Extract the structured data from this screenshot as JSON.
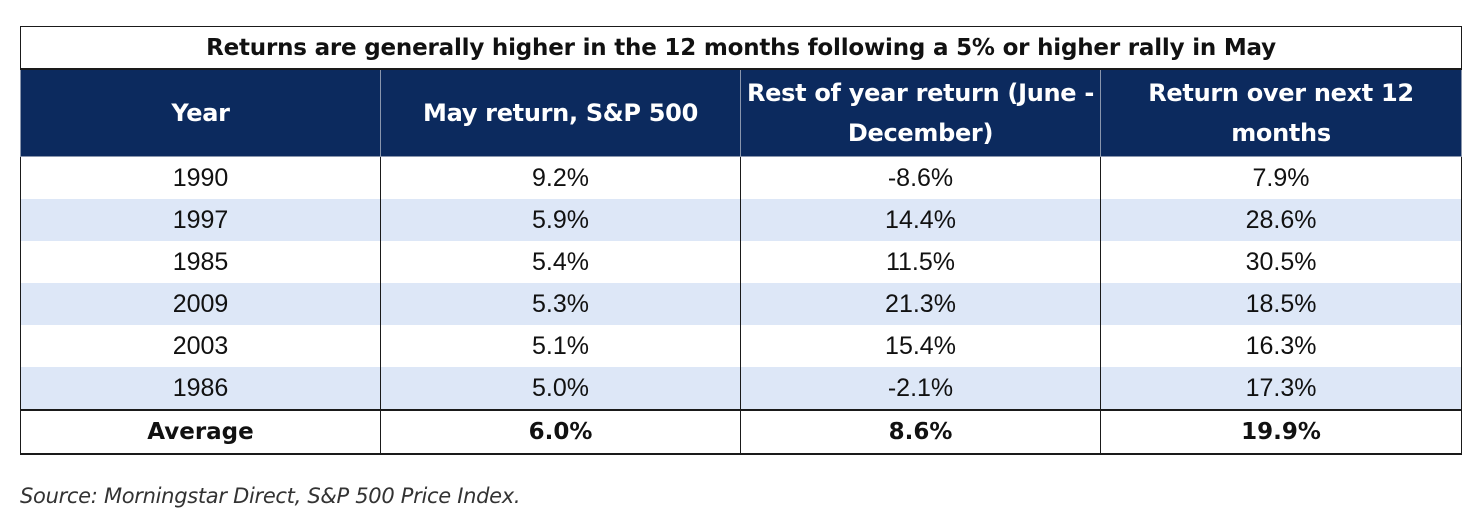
{
  "chart_data": {
    "type": "table",
    "title": "Returns are generally higher in the 12 months following a 5% or higher rally in May",
    "columns": [
      "Year",
      "May return, S&P 500",
      "Rest of year return (June - December)",
      "Return over next 12 months"
    ],
    "rows": [
      [
        "1990",
        "9.2%",
        "-8.6%",
        "7.9%"
      ],
      [
        "1997",
        "5.9%",
        "14.4%",
        "28.6%"
      ],
      [
        "1985",
        "5.4%",
        "11.5%",
        "30.5%"
      ],
      [
        "2009",
        "5.3%",
        "21.3%",
        "18.5%"
      ],
      [
        "2003",
        "5.1%",
        "15.4%",
        "16.3%"
      ],
      [
        "1986",
        "5.0%",
        "-2.1%",
        "17.3%"
      ]
    ],
    "average": [
      "Average",
      "6.0%",
      "8.6%",
      "19.9%"
    ]
  },
  "source": "Source: Morningstar Direct, S&P 500 Price Index.",
  "colors": {
    "header_bg": "#0c2a5e",
    "header_text": "#ffffff",
    "alt_row_bg": "#dde7f7"
  }
}
